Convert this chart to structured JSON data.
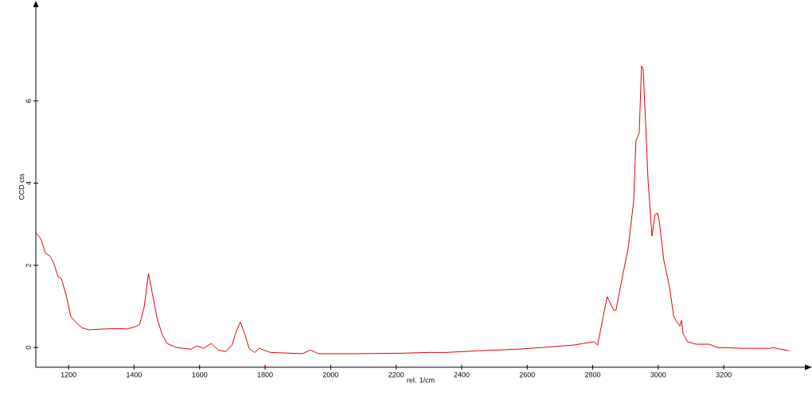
{
  "chart_data": {
    "type": "line",
    "xlabel": "rel. 1/cm",
    "ylabel": "CCD cts",
    "xlim": [
      1100,
      3450
    ],
    "ylim": [
      -0.48,
      8.3
    ],
    "xticks": [
      1200,
      1400,
      1600,
      1800,
      2000,
      2200,
      2400,
      2600,
      2800,
      3000,
      3200
    ],
    "yticks": [
      0,
      2,
      4,
      6
    ],
    "grid": false,
    "marker": "none",
    "line_style": "solid",
    "series": [
      {
        "color": "#e00000",
        "x": [
          1100,
          1115,
          1129,
          1144,
          1154,
          1168,
          1178,
          1193,
          1207,
          1222,
          1241,
          1261,
          1305,
          1353,
          1378,
          1402,
          1417,
          1431,
          1444,
          1456,
          1470,
          1485,
          1500,
          1529,
          1573,
          1592,
          1612,
          1636,
          1656,
          1680,
          1699,
          1709,
          1724,
          1738,
          1751,
          1768,
          1782,
          1816,
          1914,
          1938,
          1962,
          2084,
          2206,
          2304,
          2352,
          2450,
          2571,
          2645,
          2742,
          2803,
          2815,
          2832,
          2844,
          2864,
          2871,
          2888,
          2908,
          2925,
          2932,
          2942,
          2949,
          2954,
          2961,
          2969,
          2981,
          2990,
          2998,
          3003,
          3017,
          3034,
          3047,
          3054,
          3066,
          3071,
          3076,
          3090,
          3115,
          3156,
          3180,
          3261,
          3344,
          3349,
          3400
        ],
        "values": [
          2.79,
          2.65,
          2.3,
          2.22,
          2.07,
          1.72,
          1.68,
          1.26,
          0.75,
          0.62,
          0.48,
          0.43,
          0.45,
          0.46,
          0.45,
          0.5,
          0.56,
          1.0,
          1.8,
          1.3,
          0.72,
          0.33,
          0.1,
          0.0,
          -0.04,
          0.04,
          -0.02,
          0.1,
          -0.06,
          -0.1,
          0.06,
          0.33,
          0.62,
          0.33,
          -0.02,
          -0.12,
          -0.02,
          -0.12,
          -0.15,
          -0.06,
          -0.15,
          -0.15,
          -0.14,
          -0.12,
          -0.12,
          -0.08,
          -0.04,
          0.0,
          0.06,
          0.14,
          0.06,
          0.75,
          1.24,
          0.91,
          0.91,
          1.62,
          2.4,
          3.56,
          5.03,
          5.22,
          6.85,
          6.77,
          5.55,
          4.06,
          2.71,
          3.23,
          3.27,
          3.09,
          2.13,
          1.49,
          0.77,
          0.66,
          0.52,
          0.66,
          0.33,
          0.14,
          0.08,
          0.08,
          0.0,
          -0.02,
          -0.02,
          0.0,
          -0.08
        ]
      }
    ]
  }
}
